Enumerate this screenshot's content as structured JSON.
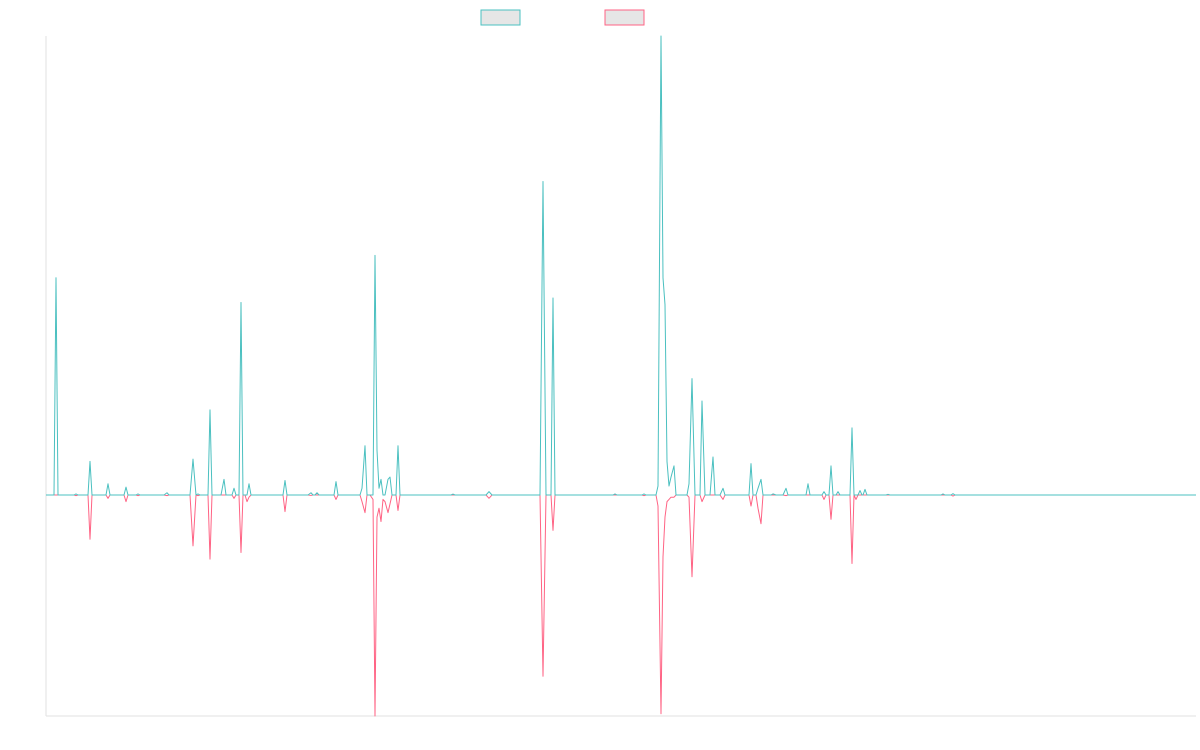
{
  "chart_data": {
    "type": "line",
    "title": "",
    "xlabel": "",
    "ylabel": "",
    "x_range": [
      0,
      1150
    ],
    "ylim": [
      -100,
      205
    ],
    "grid": false,
    "legend_position": "top-center",
    "series": [
      {
        "color": "#4bc0c0",
        "fill": "#e6e6e6",
        "points": [
          [
            0,
            0
          ],
          [
            8,
            0
          ],
          [
            10,
            97
          ],
          [
            12,
            0
          ],
          [
            28,
            0
          ],
          [
            30,
            0.5
          ],
          [
            32,
            0
          ],
          [
            42,
            0
          ],
          [
            44,
            15
          ],
          [
            46,
            0
          ],
          [
            60,
            0
          ],
          [
            62,
            5
          ],
          [
            64,
            0
          ],
          [
            78,
            0
          ],
          [
            80,
            3.5
          ],
          [
            82,
            0
          ],
          [
            90,
            0
          ],
          [
            92,
            0.5
          ],
          [
            94,
            0
          ],
          [
            118,
            0
          ],
          [
            121,
            1
          ],
          [
            123,
            0
          ],
          [
            144,
            0
          ],
          [
            147,
            16
          ],
          [
            150,
            0
          ],
          [
            152,
            0.5
          ],
          [
            154,
            0
          ],
          [
            162,
            0
          ],
          [
            164,
            38
          ],
          [
            166,
            0
          ],
          [
            175,
            0
          ],
          [
            178,
            7
          ],
          [
            180,
            0
          ],
          [
            186,
            0
          ],
          [
            188,
            3
          ],
          [
            190,
            0
          ],
          [
            193,
            0
          ],
          [
            195,
            86
          ],
          [
            197,
            0
          ],
          [
            201,
            0
          ],
          [
            203,
            5
          ],
          [
            205,
            0
          ],
          [
            237,
            0
          ],
          [
            239,
            6.5
          ],
          [
            241,
            0
          ],
          [
            262,
            0
          ],
          [
            265,
            1
          ],
          [
            267,
            0
          ],
          [
            269,
            0
          ],
          [
            271,
            1
          ],
          [
            273,
            0
          ],
          [
            288,
            0
          ],
          [
            290,
            6
          ],
          [
            292,
            0
          ],
          [
            314,
            0
          ],
          [
            316,
            3
          ],
          [
            319,
            22
          ],
          [
            321,
            0
          ],
          [
            324,
            0
          ],
          [
            327,
            0
          ],
          [
            329,
            107
          ],
          [
            331,
            20
          ],
          [
            333,
            3
          ],
          [
            335,
            7
          ],
          [
            337,
            0
          ],
          [
            339,
            0
          ],
          [
            342,
            7
          ],
          [
            344,
            8
          ],
          [
            346,
            0
          ],
          [
            350,
            0
          ],
          [
            352,
            22
          ],
          [
            354,
            0
          ],
          [
            405,
            0
          ],
          [
            407,
            0.4
          ],
          [
            409,
            0
          ],
          [
            440,
            0
          ],
          [
            443,
            1.5
          ],
          [
            446,
            0
          ],
          [
            494,
            0
          ],
          [
            497,
            140
          ],
          [
            500,
            0
          ],
          [
            505,
            0
          ],
          [
            507,
            88
          ],
          [
            509,
            0
          ],
          [
            567,
            0
          ],
          [
            569,
            0.5
          ],
          [
            571,
            0
          ],
          [
            596,
            0
          ],
          [
            598,
            0.5
          ],
          [
            600,
            0
          ],
          [
            610,
            0
          ],
          [
            612,
            4
          ],
          [
            615,
            205
          ],
          [
            617,
            97
          ],
          [
            619,
            85
          ],
          [
            621,
            15
          ],
          [
            623,
            4
          ],
          [
            625,
            8
          ],
          [
            628,
            13
          ],
          [
            630,
            0
          ],
          [
            641,
            0
          ],
          [
            643,
            5
          ],
          [
            646,
            52
          ],
          [
            649,
            0
          ],
          [
            654,
            0
          ],
          [
            656,
            42
          ],
          [
            659,
            0
          ],
          [
            664,
            0
          ],
          [
            667,
            17
          ],
          [
            669,
            0
          ],
          [
            674,
            0
          ],
          [
            677,
            3
          ],
          [
            679,
            0
          ],
          [
            703,
            0
          ],
          [
            705,
            14
          ],
          [
            707,
            0
          ],
          [
            710,
            0
          ],
          [
            712,
            3
          ],
          [
            715,
            7
          ],
          [
            717,
            0
          ],
          [
            725,
            0
          ],
          [
            727,
            0.5
          ],
          [
            730,
            0
          ],
          [
            737,
            0
          ],
          [
            740,
            3
          ],
          [
            742,
            0
          ],
          [
            760,
            0
          ],
          [
            762,
            5
          ],
          [
            764,
            0
          ],
          [
            776,
            0
          ],
          [
            778,
            1.5
          ],
          [
            780,
            0
          ],
          [
            783,
            0
          ],
          [
            785,
            13
          ],
          [
            787,
            0
          ],
          [
            790,
            0
          ],
          [
            792,
            1.5
          ],
          [
            794,
            0
          ],
          [
            804,
            0
          ],
          [
            806,
            30
          ],
          [
            808,
            0
          ],
          [
            812,
            0
          ],
          [
            814,
            2
          ],
          [
            816,
            0
          ],
          [
            817,
            0
          ],
          [
            819,
            2.5
          ],
          [
            821,
            0
          ],
          [
            840,
            0
          ],
          [
            842,
            0.3
          ],
          [
            844,
            0
          ],
          [
            895,
            0
          ],
          [
            897,
            0.5
          ],
          [
            899,
            0
          ],
          [
            905,
            0
          ],
          [
            907,
            0.6
          ],
          [
            909,
            0
          ],
          [
            1150,
            0
          ]
        ]
      },
      {
        "color": "#ff6384",
        "fill": "#e6e6e6",
        "points": [
          [
            0,
            0
          ],
          [
            28,
            0
          ],
          [
            30,
            -0.3
          ],
          [
            32,
            0
          ],
          [
            42,
            0
          ],
          [
            44,
            -20
          ],
          [
            46,
            0
          ],
          [
            60,
            0
          ],
          [
            62,
            -1.5
          ],
          [
            64,
            0
          ],
          [
            78,
            0
          ],
          [
            80,
            -3
          ],
          [
            82,
            0
          ],
          [
            90,
            0
          ],
          [
            92,
            -0.3
          ],
          [
            94,
            0
          ],
          [
            118,
            0
          ],
          [
            121,
            -0.3
          ],
          [
            123,
            0
          ],
          [
            144,
            0
          ],
          [
            147,
            -23
          ],
          [
            150,
            0
          ],
          [
            152,
            -0.3
          ],
          [
            154,
            0
          ],
          [
            162,
            0
          ],
          [
            164,
            -29
          ],
          [
            166,
            0
          ],
          [
            186,
            0
          ],
          [
            188,
            -1.5
          ],
          [
            190,
            0
          ],
          [
            193,
            0
          ],
          [
            195,
            -26
          ],
          [
            197,
            0
          ],
          [
            199,
            0
          ],
          [
            201,
            -3
          ],
          [
            203,
            -1
          ],
          [
            205,
            0
          ],
          [
            237,
            0
          ],
          [
            239,
            -7.5
          ],
          [
            241,
            0
          ],
          [
            262,
            0
          ],
          [
            265,
            -0.2
          ],
          [
            267,
            0
          ],
          [
            288,
            0
          ],
          [
            290,
            -2
          ],
          [
            292,
            0
          ],
          [
            314,
            0
          ],
          [
            316,
            -3
          ],
          [
            319,
            -8
          ],
          [
            321,
            0
          ],
          [
            324,
            0
          ],
          [
            327,
            -2
          ],
          [
            329,
            -100
          ],
          [
            331,
            -10
          ],
          [
            333,
            -6
          ],
          [
            335,
            -12
          ],
          [
            337,
            -2
          ],
          [
            339,
            -3
          ],
          [
            342,
            -8
          ],
          [
            344,
            -4
          ],
          [
            346,
            0
          ],
          [
            350,
            0
          ],
          [
            352,
            -7
          ],
          [
            354,
            0
          ],
          [
            440,
            0
          ],
          [
            443,
            -1.5
          ],
          [
            446,
            0
          ],
          [
            494,
            0
          ],
          [
            497,
            -82
          ],
          [
            500,
            0
          ],
          [
            505,
            0
          ],
          [
            507,
            -16
          ],
          [
            509,
            0
          ],
          [
            596,
            0
          ],
          [
            598,
            -0.3
          ],
          [
            600,
            0
          ],
          [
            610,
            0
          ],
          [
            612,
            -5
          ],
          [
            615,
            -99
          ],
          [
            617,
            -28
          ],
          [
            619,
            -10
          ],
          [
            621,
            -3
          ],
          [
            623,
            -2
          ],
          [
            625,
            -1
          ],
          [
            628,
            -1
          ],
          [
            630,
            0
          ],
          [
            641,
            0
          ],
          [
            643,
            -1
          ],
          [
            646,
            -37
          ],
          [
            649,
            0
          ],
          [
            654,
            0
          ],
          [
            656,
            -3
          ],
          [
            659,
            0
          ],
          [
            674,
            0
          ],
          [
            677,
            -2
          ],
          [
            679,
            0
          ],
          [
            703,
            0
          ],
          [
            705,
            -5
          ],
          [
            707,
            0
          ],
          [
            710,
            0
          ],
          [
            712,
            -6
          ],
          [
            715,
            -13
          ],
          [
            717,
            0
          ],
          [
            737,
            0
          ],
          [
            740,
            -0.3
          ],
          [
            742,
            0
          ],
          [
            776,
            0
          ],
          [
            778,
            -2
          ],
          [
            780,
            0
          ],
          [
            783,
            0
          ],
          [
            785,
            -11
          ],
          [
            787,
            0
          ],
          [
            804,
            0
          ],
          [
            806,
            -31
          ],
          [
            808,
            0
          ],
          [
            810,
            -2
          ],
          [
            812,
            0
          ],
          [
            905,
            0
          ],
          [
            907,
            -0.5
          ],
          [
            909,
            0
          ],
          [
            1150,
            0
          ]
        ]
      }
    ]
  }
}
